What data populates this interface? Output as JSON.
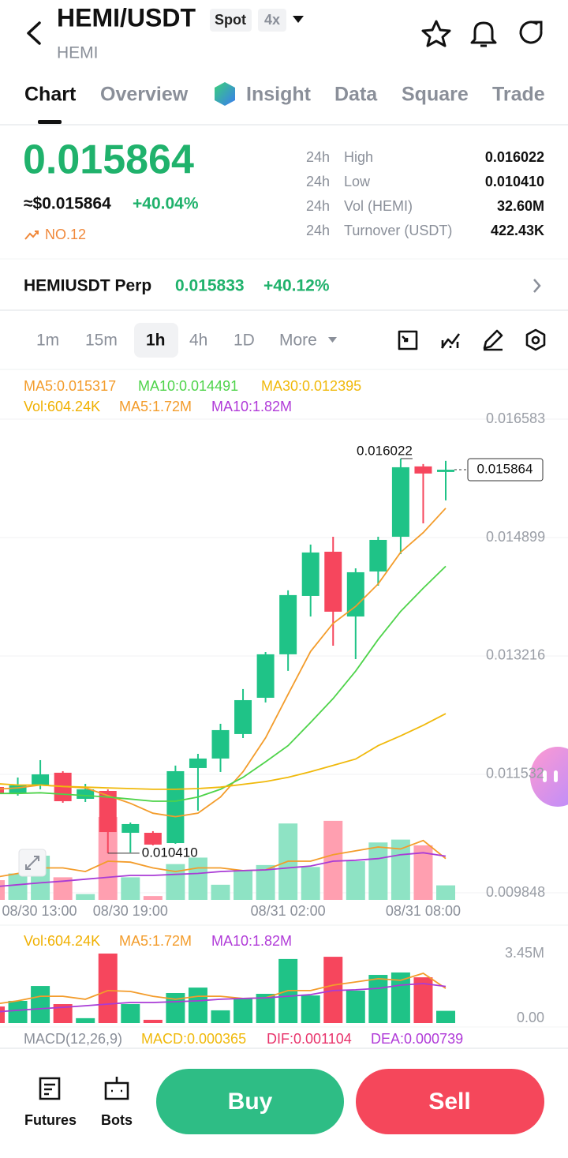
{
  "header": {
    "pair": "HEMI/USDT",
    "market": "Spot",
    "leverage": "4x",
    "base": "HEMI"
  },
  "tabs": [
    {
      "label": "Chart",
      "active": true
    },
    {
      "label": "Overview",
      "active": false
    },
    {
      "label": "Insight",
      "active": false
    },
    {
      "label": "Data",
      "active": false
    },
    {
      "label": "Square",
      "active": false
    },
    {
      "label": "Trade",
      "active": false
    }
  ],
  "ticker": {
    "price": "0.015864",
    "usd_price": "≈$0.015864",
    "change": "+40.04%",
    "rank": "NO.12",
    "stats": [
      {
        "period": "24h",
        "label": "High",
        "value": "0.016022"
      },
      {
        "period": "24h",
        "label": "Low",
        "value": "0.010410"
      },
      {
        "period": "24h",
        "label": "Vol (HEMI)",
        "value": "32.60M"
      },
      {
        "period": "24h",
        "label": "Turnover (USDT)",
        "value": "422.43K"
      }
    ]
  },
  "perp": {
    "name": "HEMIUSDT Perp",
    "price": "0.015833",
    "change": "+40.12%"
  },
  "intervals": [
    {
      "label": "1m",
      "active": false
    },
    {
      "label": "15m",
      "active": false
    },
    {
      "label": "1h",
      "active": true
    },
    {
      "label": "4h",
      "active": false
    },
    {
      "label": "1D",
      "active": false
    },
    {
      "label": "More",
      "active": false
    }
  ],
  "chart": {
    "type": "candlestick",
    "legend": [
      {
        "text": "MA5:0.015317",
        "color": "#f39c2b"
      },
      {
        "text": "MA10:0.014491",
        "color": "#4ed34a"
      },
      {
        "text": "MA30:0.012395",
        "color": "#f0b90b"
      }
    ],
    "volume_legend": [
      {
        "text": "Vol:604.24K",
        "color": "#f0b000"
      },
      {
        "text": "MA5:1.72M",
        "color": "#f39c2b"
      },
      {
        "text": "MA10:1.82M",
        "color": "#b03ad8"
      }
    ],
    "categories": [
      "08/30 13:00",
      null,
      null,
      null,
      null,
      null,
      "08/30 19:00",
      null,
      null,
      null,
      null,
      null,
      null,
      "08/31 02:00",
      null,
      null,
      null,
      null,
      null,
      "08/31 08:00",
      null
    ],
    "open": [
      0.011352,
      0.011263,
      0.011375,
      0.011555,
      0.011184,
      0.011296,
      0.010701,
      0.010701,
      0.010555,
      0.011622,
      0.011757,
      0.012105,
      0.012621,
      0.013239,
      0.014069,
      0.014698,
      0.013777,
      0.014417,
      0.014911,
      0.015911,
      0.015832
    ],
    "high": [
      0.011375,
      0.011487,
      0.011734,
      0.011577,
      0.011397,
      0.011319,
      0.010847,
      0.010724,
      0.011656,
      0.011824,
      0.012251,
      0.012745,
      0.013272,
      0.014148,
      0.014799,
      0.014911,
      0.014462,
      0.014911,
      0.016022,
      0.015944,
      0.01599
    ],
    "low": [
      0.01124,
      0.011229,
      0.011319,
      0.011128,
      0.011139,
      0.01041,
      0.010421,
      0.010522,
      0.010544,
      0.011016,
      0.011566,
      0.012048,
      0.012554,
      0.013003,
      0.013777,
      0.013362,
      0.013171,
      0.014215,
      0.014664,
      0.015102,
      0.015428
    ],
    "close": [
      0.011263,
      0.011375,
      0.011532,
      0.01115,
      0.011319,
      0.010712,
      0.010825,
      0.010533,
      0.011577,
      0.011757,
      0.012161,
      0.012587,
      0.013239,
      0.014081,
      0.014687,
      0.013845,
      0.014406,
      0.014866,
      0.015899,
      0.01581,
      0.015864
    ],
    "ylim": [
      0.009848,
      0.016583
    ],
    "yticks": [
      0.016583,
      0.014899,
      0.013216,
      0.011532,
      0.009848
    ],
    "grid": true,
    "up_color": "#1fc387",
    "down_color": "#f6465d",
    "ma": [
      {
        "color": "#f39c2b",
        "values": [
          0.01132,
          0.01134,
          0.01138,
          0.01136,
          0.01134,
          0.01123,
          0.01112,
          0.01098,
          0.01093,
          0.01098,
          0.01121,
          0.01157,
          0.01205,
          0.01267,
          0.01328,
          0.01368,
          0.01392,
          0.01424,
          0.01469,
          0.01497,
          0.015317
        ]
      },
      {
        "color": "#4ed34a",
        "values": [
          0.01126,
          0.01126,
          0.01127,
          0.01125,
          0.01123,
          0.01121,
          0.01118,
          0.01115,
          0.01115,
          0.01121,
          0.01132,
          0.01149,
          0.01171,
          0.01194,
          0.01227,
          0.01261,
          0.013,
          0.01345,
          0.01385,
          0.01418,
          0.014491
        ]
      },
      {
        "color": "#f0b90b",
        "values": [
          0.0114,
          0.01138,
          0.01138,
          0.01136,
          0.01135,
          0.01134,
          0.01133,
          0.01132,
          0.01132,
          0.01133,
          0.01135,
          0.01139,
          0.01143,
          0.01149,
          0.01157,
          0.01166,
          0.01175,
          0.01194,
          0.01208,
          0.01223,
          0.012395
        ]
      }
    ],
    "high_marker": 0.016022,
    "low_marker": {
      "value": 0.01041,
      "label": "0.010410"
    },
    "last_price": 0.015864,
    "volume": {
      "values": [
        820000,
        1100000,
        1840000,
        940000,
        240000,
        3450000,
        940000,
        160000,
        1490000,
        1760000,
        630000,
        1220000,
        1450000,
        3180000,
        1370000,
        3290000,
        1610000,
        2390000,
        2510000,
        2270000,
        604240
      ],
      "ma": [
        {
          "color": "#f39c2b",
          "values": [
            940000,
            1100000,
            1330000,
            1330000,
            1180000,
            1610000,
            1570000,
            1330000,
            1180000,
            1330000,
            1330000,
            1220000,
            1250000,
            1610000,
            1610000,
            1880000,
            2040000,
            2200000,
            2120000,
            2470000,
            1720000
          ]
        },
        {
          "color": "#a93bd6",
          "values": [
            550000,
            630000,
            710000,
            780000,
            860000,
            940000,
            1020000,
            1020000,
            1060000,
            1100000,
            1180000,
            1220000,
            1250000,
            1330000,
            1410000,
            1610000,
            1650000,
            1720000,
            1880000,
            1960000,
            1820000
          ]
        }
      ],
      "ylim": [
        0,
        3450000
      ],
      "yticks": [
        {
          "value": 3450000,
          "label": "3.45M"
        },
        {
          "value": 0,
          "label": "0.00"
        }
      ]
    }
  },
  "macd": [
    {
      "text": "MACD(12,26,9)",
      "color": "#8a8f99"
    },
    {
      "text": "MACD:0.000365",
      "color": "#f0b90b"
    },
    {
      "text": "DIF:0.001104",
      "color": "#e8336b"
    },
    {
      "text": "DEA:0.000739",
      "color": "#b03ad8"
    }
  ],
  "bottom_bar": {
    "futures": "Futures",
    "bots": "Bots",
    "buy": "Buy",
    "sell": "Sell"
  }
}
